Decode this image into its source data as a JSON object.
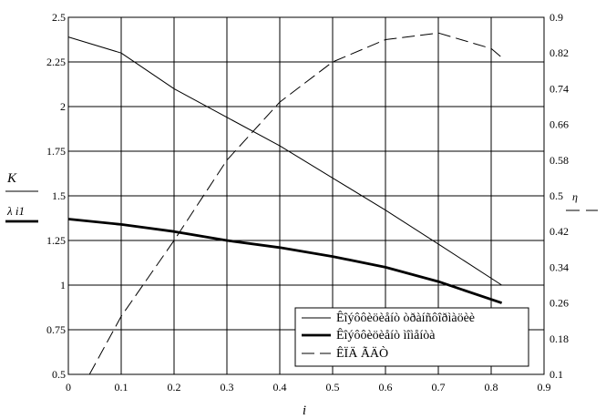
{
  "chart_data": {
    "type": "line",
    "xlabel": "i",
    "ylabel_left": {
      "main": "K",
      "sub": "λ i1"
    },
    "ylabel_right": "η",
    "xlim": [
      0,
      0.9
    ],
    "ylim_left": [
      0.5,
      2.5
    ],
    "ylim_right": [
      0.1,
      0.9
    ],
    "grid": true,
    "legend_position": "bottom-right",
    "x_ticks": [
      "0",
      "0.1",
      "0.2",
      "0.3",
      "0.4",
      "0.5",
      "0.6",
      "0.7",
      "0.8",
      "0.9"
    ],
    "y_left_ticks": [
      "0.5",
      "0.75",
      "1",
      "1.25",
      "1.5",
      "1.75",
      "2",
      "2.25",
      "2.5"
    ],
    "y_right_ticks": [
      "0.1",
      "0.18",
      "0.26",
      "0.34",
      "0.42",
      "0.5",
      "0.58",
      "0.66",
      "0.74",
      "0.82",
      "0.9"
    ],
    "series": [
      {
        "name": "Êîýôôèöèåíò òðàíñôîðìàöèè",
        "axis": "left",
        "style": "thin",
        "points": [
          [
            0,
            2.39
          ],
          [
            0.1,
            2.3
          ],
          [
            0.2,
            2.1
          ],
          [
            0.3,
            1.94
          ],
          [
            0.4,
            1.78
          ],
          [
            0.5,
            1.6
          ],
          [
            0.6,
            1.42
          ],
          [
            0.7,
            1.23
          ],
          [
            0.82,
            1.0
          ]
        ]
      },
      {
        "name": "Êîýôôèöèåíò ìîìåíòà",
        "axis": "left",
        "style": "thick",
        "points": [
          [
            0,
            1.37
          ],
          [
            0.1,
            1.34
          ],
          [
            0.2,
            1.3
          ],
          [
            0.3,
            1.25
          ],
          [
            0.4,
            1.21
          ],
          [
            0.5,
            1.16
          ],
          [
            0.6,
            1.1
          ],
          [
            0.7,
            1.02
          ],
          [
            0.82,
            0.9
          ]
        ]
      },
      {
        "name": "ÊÏÄ ÃÄÒ",
        "axis": "right",
        "style": "dashed",
        "points": [
          [
            0.04,
            0.1
          ],
          [
            0.1,
            0.23
          ],
          [
            0.2,
            0.4
          ],
          [
            0.3,
            0.58
          ],
          [
            0.4,
            0.71
          ],
          [
            0.5,
            0.8
          ],
          [
            0.6,
            0.85
          ],
          [
            0.7,
            0.865
          ],
          [
            0.8,
            0.83
          ],
          [
            0.82,
            0.81
          ]
        ]
      }
    ]
  }
}
